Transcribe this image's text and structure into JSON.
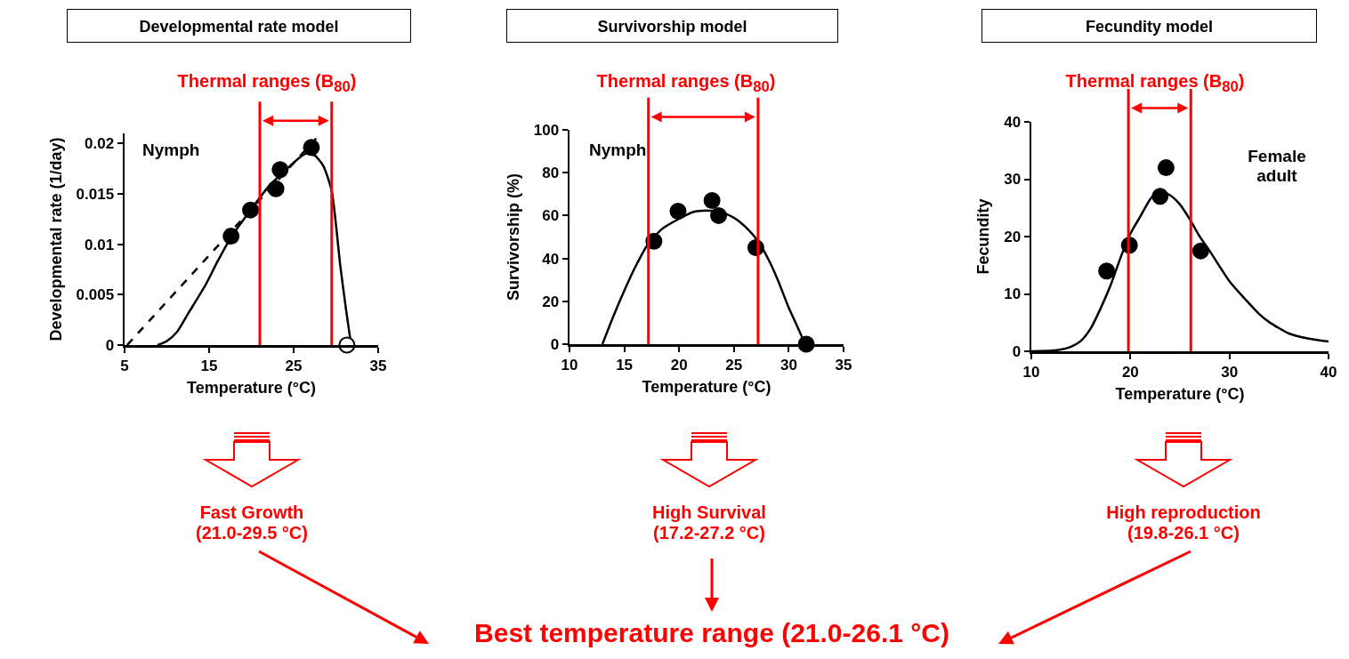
{
  "chart_data": [
    {
      "type": "scatter",
      "title": "Developmental rate model",
      "subtitle": "Thermal ranges (B$_{80}$)",
      "xlabel": "Temperature (°C)",
      "ylabel": "Developmental rate (1/day)",
      "annotations": [
        "Nymph",
        "Fast Growth\n(21.0-29.5 °C)"
      ],
      "xlim": [
        5,
        35
      ],
      "xticks": [
        5,
        15,
        25,
        35
      ],
      "ylim": [
        0,
        0.021
      ],
      "yticks": [
        0,
        0.005,
        0.01,
        0.015,
        0.02
      ],
      "series": [
        {
          "type": "line",
          "color": "#000000",
          "line_style": "dashed",
          "x": [
            5.3,
            28.2
          ],
          "values": [
            0,
            0.021
          ]
        },
        {
          "type": "line",
          "color": "#000000",
          "line_style": "solid",
          "x": [
            8.9,
            10,
            11.2,
            12.5,
            14.6,
            16,
            17.6,
            20,
            22,
            25,
            26.4,
            27.5,
            28.5,
            29.5,
            30.5,
            31.2,
            31.8
          ],
          "values": [
            0,
            0.0004,
            0.0013,
            0.0031,
            0.006,
            0.0083,
            0.0107,
            0.0135,
            0.0157,
            0.0181,
            0.019,
            0.0188,
            0.0178,
            0.0153,
            0.008,
            0.0035,
            0
          ]
        },
        {
          "type": "scatter",
          "color": "#000000",
          "marker": "circle",
          "x": [
            17.6,
            19.9,
            22.9,
            23.4,
            27.1
          ],
          "values": [
            0.0108,
            0.0134,
            0.0155,
            0.0174,
            0.0196
          ]
        },
        {
          "type": "scatter",
          "color": "#ffffff",
          "marker": "circle",
          "x": [
            31.3
          ],
          "values": [
            0
          ]
        }
      ],
      "ref_lines": [
        {
          "axis": "x",
          "value": 21.0,
          "color": "#ff0000"
        },
        {
          "axis": "x",
          "value": 29.5,
          "color": "#ff0000"
        }
      ]
    },
    {
      "type": "scatter",
      "title": "Survivorship model",
      "subtitle": "Thermal ranges (B$_{80}$)",
      "xlabel": "Temperature (°C)",
      "ylabel": "Survivorship (%)",
      "annotations": [
        "Nymph",
        "High Survival\n(17.2-27.2 °C)",
        "Best temperature range (21.0-26.1 °C)"
      ],
      "xlim": [
        10,
        35
      ],
      "xticks": [
        10,
        15,
        20,
        25,
        30,
        35
      ],
      "ylim": [
        0,
        100
      ],
      "yticks": [
        0,
        20,
        40,
        60,
        80,
        100
      ],
      "series": [
        {
          "type": "line",
          "color": "#000000",
          "line_style": "solid",
          "x": [
            13,
            14,
            15,
            16,
            17.2,
            18.5,
            20,
            21.2,
            22.5,
            23.8,
            25,
            26.2,
            27.2,
            28.2,
            29,
            30,
            30.8,
            31.5
          ],
          "values": [
            0,
            13,
            25,
            36,
            47,
            54,
            58.5,
            61.5,
            62.3,
            61.5,
            59,
            54,
            48,
            39,
            30,
            17,
            8,
            0
          ]
        },
        {
          "type": "scatter",
          "color": "#000000",
          "marker": "circle",
          "x": [
            17.7,
            19.9,
            23.0,
            23.6,
            27.0,
            31.6
          ],
          "values": [
            48,
            62,
            67,
            60,
            45,
            0
          ]
        }
      ],
      "ref_lines": [
        {
          "axis": "x",
          "value": 17.2,
          "color": "#ff0000"
        },
        {
          "axis": "x",
          "value": 27.2,
          "color": "#ff0000"
        }
      ]
    },
    {
      "type": "scatter",
      "title": "Fecundity model",
      "subtitle": "Thermal ranges (B$_{80}$)",
      "xlabel": "Temperature (°C)",
      "ylabel": "Fecundity",
      "annotations": [
        "Female\nadult",
        "High reproduction\n(19.8-26.1 °C)"
      ],
      "xlim": [
        10,
        40
      ],
      "xticks": [
        10,
        20,
        30,
        40
      ],
      "ylim": [
        0,
        40
      ],
      "yticks": [
        0,
        10,
        20,
        30,
        40
      ],
      "series": [
        {
          "type": "line",
          "color": "#000000",
          "line_style": "solid",
          "x": [
            10,
            12,
            13,
            14,
            15,
            16,
            17,
            18,
            19,
            20,
            21,
            22,
            22.8,
            24,
            25,
            26,
            27,
            28,
            30,
            32,
            33,
            34,
            36,
            38,
            40
          ],
          "values": [
            0,
            0.1,
            0.3,
            0.8,
            1.8,
            4,
            7.5,
            11.5,
            16.3,
            20.5,
            23.5,
            26.5,
            28,
            27.2,
            25.6,
            23,
            20,
            17.5,
            12.2,
            8.3,
            6.5,
            5.1,
            3.1,
            2.2,
            1.7
          ]
        },
        {
          "type": "scatter",
          "color": "#000000",
          "marker": "circle",
          "x": [
            17.6,
            19.9,
            23.0,
            23.6,
            27.1
          ],
          "values": [
            14,
            18.5,
            27,
            32,
            17.5
          ]
        }
      ],
      "ref_lines": [
        {
          "axis": "x",
          "value": 19.8,
          "color": "#ff0000"
        },
        {
          "axis": "x",
          "value": 26.1,
          "color": "#ff0000"
        }
      ]
    }
  ]
}
